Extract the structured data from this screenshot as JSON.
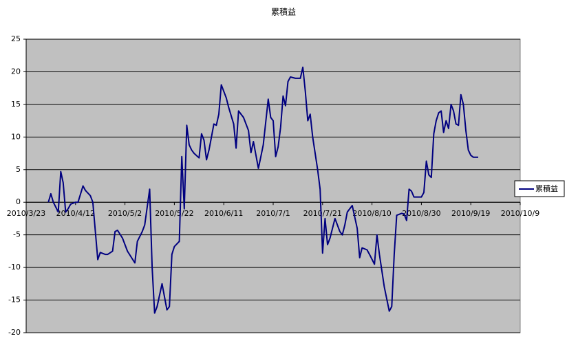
{
  "chart_data": {
    "type": "line",
    "title": "累積益",
    "x": [
      "2010/4/1",
      "2010/4/2",
      "2010/4/3",
      "2010/4/5",
      "2010/4/6",
      "2010/4/7",
      "2010/4/8",
      "2010/4/9",
      "2010/4/10",
      "2010/4/12",
      "2010/4/13",
      "2010/4/15",
      "2010/4/16",
      "2010/4/18",
      "2010/4/19",
      "2010/4/21",
      "2010/4/22",
      "2010/4/24",
      "2010/4/25",
      "2010/4/27",
      "2010/4/28",
      "2010/4/29",
      "2010/5/1",
      "2010/5/3",
      "2010/5/6",
      "2010/5/7",
      "2010/5/9",
      "2010/5/10",
      "2010/5/12",
      "2010/5/13",
      "2010/5/14",
      "2010/5/15",
      "2010/5/17",
      "2010/5/19",
      "2010/5/20",
      "2010/5/21",
      "2010/5/22",
      "2010/5/24",
      "2010/5/25",
      "2010/5/26",
      "2010/5/27",
      "2010/5/28",
      "2010/5/29",
      "2010/5/30",
      "2010/6/1",
      "2010/6/2",
      "2010/6/3",
      "2010/6/4",
      "2010/6/5",
      "2010/6/6",
      "2010/6/7",
      "2010/6/8",
      "2010/6/9",
      "2010/6/10",
      "2010/6/12",
      "2010/6/13",
      "2010/6/15",
      "2010/6/16",
      "2010/6/17",
      "2010/6/19",
      "2010/6/21",
      "2010/6/22",
      "2010/6/23",
      "2010/6/25",
      "2010/6/26",
      "2010/6/27",
      "2010/6/29",
      "2010/6/30",
      "2010/7/1",
      "2010/7/2",
      "2010/7/3",
      "2010/7/4",
      "2010/7/5",
      "2010/7/6",
      "2010/7/7",
      "2010/7/8",
      "2010/7/10",
      "2010/7/12",
      "2010/7/13",
      "2010/7/14",
      "2010/7/15",
      "2010/7/16",
      "2010/7/17",
      "2010/7/19",
      "2010/7/20",
      "2010/7/21",
      "2010/7/22",
      "2010/7/23",
      "2010/7/24",
      "2010/7/26",
      "2010/7/28",
      "2010/7/29",
      "2010/7/30",
      "2010/7/31",
      "2010/8/2",
      "2010/8/4",
      "2010/8/5",
      "2010/8/6",
      "2010/8/8",
      "2010/8/9",
      "2010/8/11",
      "2010/8/12",
      "2010/8/13",
      "2010/8/15",
      "2010/8/17",
      "2010/8/18",
      "2010/8/19",
      "2010/8/20",
      "2010/8/22",
      "2010/8/23",
      "2010/8/24",
      "2010/8/25",
      "2010/8/26",
      "2010/8/27",
      "2010/8/30",
      "2010/8/31",
      "2010/9/1",
      "2010/9/2",
      "2010/9/3",
      "2010/9/4",
      "2010/9/5",
      "2010/9/6",
      "2010/9/7",
      "2010/9/8",
      "2010/9/9",
      "2010/9/10",
      "2010/9/11",
      "2010/9/12",
      "2010/9/13",
      "2010/9/14",
      "2010/9/15",
      "2010/9/16",
      "2010/9/17",
      "2010/9/18",
      "2010/9/19",
      "2010/9/20",
      "2010/9/22"
    ],
    "series": [
      {
        "name": "累積益",
        "color": "#000080",
        "values": [
          0,
          1.3,
          0,
          -1.5,
          4.7,
          3,
          -1.5,
          -1,
          -0.3,
          0,
          0,
          2.5,
          1.8,
          1,
          0,
          -8.8,
          -7.7,
          -8,
          -8,
          -7.5,
          -4.5,
          -4.3,
          -5.5,
          -7.5,
          -9.3,
          -6,
          -4.5,
          -3.5,
          2,
          -10,
          -17,
          -16,
          -12.5,
          -16.5,
          -16,
          -8,
          -6.8,
          -6,
          7,
          -1,
          11.8,
          8.8,
          8,
          7.5,
          6.8,
          10.5,
          9.5,
          6.5,
          8,
          10,
          12,
          11.8,
          13.5,
          18,
          16,
          14.5,
          12,
          8.3,
          14,
          13,
          11,
          7.6,
          9.3,
          5.2,
          7,
          8.8,
          15.8,
          13,
          12.5,
          7,
          8.5,
          11.5,
          16.3,
          14.8,
          18.5,
          19.2,
          19,
          19,
          20.7,
          17,
          12.5,
          13.5,
          10,
          5,
          2,
          -7.8,
          -2.5,
          -6.5,
          -5.5,
          -2.5,
          -4.5,
          -5,
          -3.5,
          -1.5,
          -0.5,
          -4,
          -8.5,
          -7,
          -7.3,
          -8,
          -9.5,
          -5,
          -8,
          -13,
          -16.7,
          -16,
          -8,
          -2,
          -1.7,
          -1.8,
          -2.8,
          2,
          1.7,
          0.8,
          0.8,
          1.5,
          6.3,
          4.2,
          3.8,
          10.5,
          12.5,
          13.7,
          14,
          10.7,
          12.5,
          11.3,
          15,
          14,
          12,
          11.8,
          16.5,
          15,
          11,
          8,
          7.2,
          6.9,
          6.9
        ]
      }
    ],
    "xlim": [
      "2010/3/23",
      "2010/10/9"
    ],
    "xticks": [
      "2010/3/23",
      "2010/4/12",
      "2010/5/2",
      "2010/5/22",
      "2010/6/11",
      "2010/7/1",
      "2010/7/21",
      "2010/8/10",
      "2010/8/30",
      "2010/9/19",
      "2010/10/9"
    ],
    "ylim": [
      -20,
      25
    ],
    "yticks": [
      -20,
      -15,
      -10,
      -5,
      0,
      5,
      10,
      15,
      20,
      25
    ],
    "grid": true,
    "legend": "right"
  }
}
